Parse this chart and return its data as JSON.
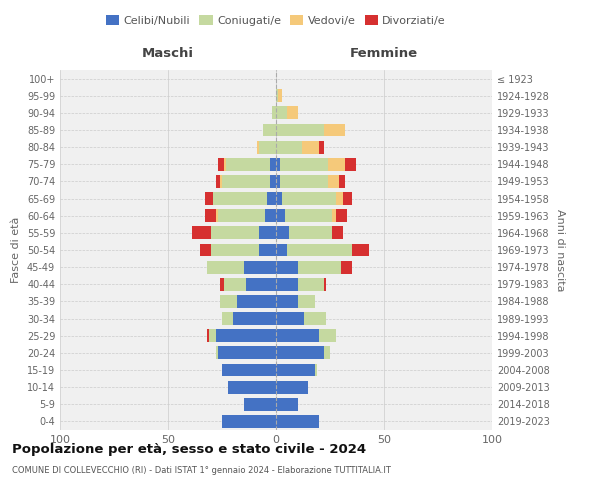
{
  "age_groups": [
    "0-4",
    "5-9",
    "10-14",
    "15-19",
    "20-24",
    "25-29",
    "30-34",
    "35-39",
    "40-44",
    "45-49",
    "50-54",
    "55-59",
    "60-64",
    "65-69",
    "70-74",
    "75-79",
    "80-84",
    "85-89",
    "90-94",
    "95-99",
    "100+"
  ],
  "birth_years": [
    "2019-2023",
    "2014-2018",
    "2009-2013",
    "2004-2008",
    "1999-2003",
    "1994-1998",
    "1989-1993",
    "1984-1988",
    "1979-1983",
    "1974-1978",
    "1969-1973",
    "1964-1968",
    "1959-1963",
    "1954-1958",
    "1949-1953",
    "1944-1948",
    "1939-1943",
    "1934-1938",
    "1929-1933",
    "1924-1928",
    "≤ 1923"
  ],
  "colors": {
    "celibe": "#4472c4",
    "coniugato": "#c5d9a0",
    "vedovo": "#f5c97a",
    "divorziato": "#d63030"
  },
  "males": {
    "celibe": [
      25,
      15,
      22,
      25,
      27,
      28,
      20,
      18,
      14,
      15,
      8,
      8,
      5,
      4,
      3,
      3,
      0,
      0,
      0,
      0,
      0
    ],
    "coniugato": [
      0,
      0,
      0,
      0,
      1,
      3,
      5,
      8,
      10,
      17,
      22,
      22,
      22,
      25,
      22,
      20,
      8,
      6,
      2,
      0,
      0
    ],
    "vedovo": [
      0,
      0,
      0,
      0,
      0,
      0,
      0,
      0,
      0,
      0,
      0,
      0,
      1,
      0,
      1,
      1,
      1,
      0,
      0,
      0,
      0
    ],
    "divorziato": [
      0,
      0,
      0,
      0,
      0,
      1,
      0,
      0,
      2,
      0,
      5,
      9,
      5,
      4,
      2,
      3,
      0,
      0,
      0,
      0,
      0
    ]
  },
  "females": {
    "nubile": [
      20,
      10,
      15,
      18,
      22,
      20,
      13,
      10,
      10,
      10,
      5,
      6,
      4,
      3,
      2,
      2,
      0,
      0,
      0,
      0,
      0
    ],
    "coniugata": [
      0,
      0,
      0,
      1,
      3,
      8,
      10,
      8,
      12,
      20,
      30,
      20,
      22,
      25,
      22,
      22,
      12,
      22,
      5,
      1,
      0
    ],
    "vedova": [
      0,
      0,
      0,
      0,
      0,
      0,
      0,
      0,
      0,
      0,
      0,
      0,
      2,
      3,
      5,
      8,
      8,
      10,
      5,
      2,
      0
    ],
    "divorziata": [
      0,
      0,
      0,
      0,
      0,
      0,
      0,
      0,
      1,
      5,
      8,
      5,
      5,
      4,
      3,
      5,
      2,
      0,
      0,
      0,
      0
    ]
  },
  "xlim": 100,
  "title": "Popolazione per età, sesso e stato civile - 2024",
  "subtitle": "COMUNE DI COLLEVECCHIO (RI) - Dati ISTAT 1° gennaio 2024 - Elaborazione TUTTITALIA.IT",
  "ylabel_left": "Fasce di età",
  "ylabel_right": "Anni di nascita",
  "xlabel_left": "Maschi",
  "xlabel_right": "Femmine",
  "bg_color": "#f0f0f0",
  "grid_color": "#cccccc"
}
